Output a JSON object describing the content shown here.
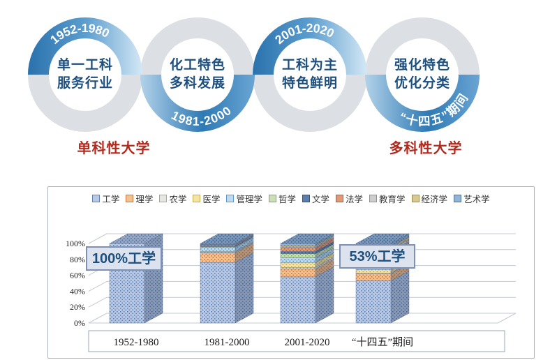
{
  "timeline": {
    "items": [
      {
        "period": "1952-1980",
        "arc": "top",
        "lines": [
          "单一工科",
          "服务行业"
        ]
      },
      {
        "period": "1981-2000",
        "arc": "bottom",
        "lines": [
          "化工特色",
          "多科发展"
        ]
      },
      {
        "period": "2001-2020",
        "arc": "top",
        "lines": [
          "工科为主",
          "特色鲜明"
        ]
      },
      {
        "period": "“十四五”期间",
        "arc": "bottom",
        "lines": [
          "强化特色",
          "优化分类"
        ]
      }
    ],
    "caption_left": "单科性大学",
    "caption_right": "多科性大学",
    "colors": {
      "ring_gray": "#dcdfe3",
      "blue_dark": "#2a72ad",
      "blue_mid": "#5b9dce",
      "blue_light": "#d4e8f5",
      "inner_text_blue": "#1c4f7e",
      "caption_red": "#b22a1d",
      "arc_text_white": "#ffffff"
    }
  },
  "chart_data": {
    "type": "bar",
    "variant": "3d-stacked-column-percent",
    "title": "",
    "categories": [
      "1952-1980",
      "1981-2000",
      "2001-2020",
      "“十四五”期间"
    ],
    "series": [
      {
        "name": "工学",
        "color": "#b7c9e4",
        "accent": "#6181b4",
        "values": [
          100,
          76,
          58,
          53
        ]
      },
      {
        "name": "理学",
        "color": "#f4c08e",
        "accent": "#cd7839",
        "values": [
          0,
          12,
          10,
          9
        ]
      },
      {
        "name": "农学",
        "color": "#e6e6e2",
        "accent": "#a6a69e",
        "values": [
          0,
          1,
          2,
          1
        ]
      },
      {
        "name": "医学",
        "color": "#f4e3a1",
        "accent": "#c9ab45",
        "values": [
          0,
          1,
          6,
          4
        ]
      },
      {
        "name": "管理学",
        "color": "#bedaed",
        "accent": "#5b9bd5",
        "values": [
          0,
          5,
          6,
          7
        ]
      },
      {
        "name": "哲学",
        "color": "#cadfb6",
        "accent": "#7fac62",
        "values": [
          0,
          1,
          5,
          4
        ]
      },
      {
        "name": "文学",
        "color": "#5b7db0",
        "accent": "#34517e",
        "values": [
          0,
          1,
          3,
          6
        ]
      },
      {
        "name": "法学",
        "color": "#e39a74",
        "accent": "#b85c2b",
        "values": [
          0,
          1,
          5,
          6
        ]
      },
      {
        "name": "教育学",
        "color": "#cccccc",
        "accent": "#8f8f8f",
        "values": [
          0,
          0.5,
          1.5,
          3
        ]
      },
      {
        "name": "经济学",
        "color": "#d9c893",
        "accent": "#a38e3c",
        "values": [
          0,
          0.5,
          1.5,
          3
        ]
      },
      {
        "name": "艺术学",
        "color": "#93b3d7",
        "accent": "#44719e",
        "values": [
          0,
          1,
          2,
          4
        ]
      }
    ],
    "y_ticks": [
      "0%",
      "20%",
      "40%",
      "60%",
      "80%",
      "100%"
    ],
    "ylim": [
      0,
      100
    ],
    "legend_position": "top",
    "grid": true,
    "annotations": [
      {
        "text": "100%工学",
        "category_index": 0
      },
      {
        "text": "53%工学",
        "category_index": 3
      }
    ]
  }
}
